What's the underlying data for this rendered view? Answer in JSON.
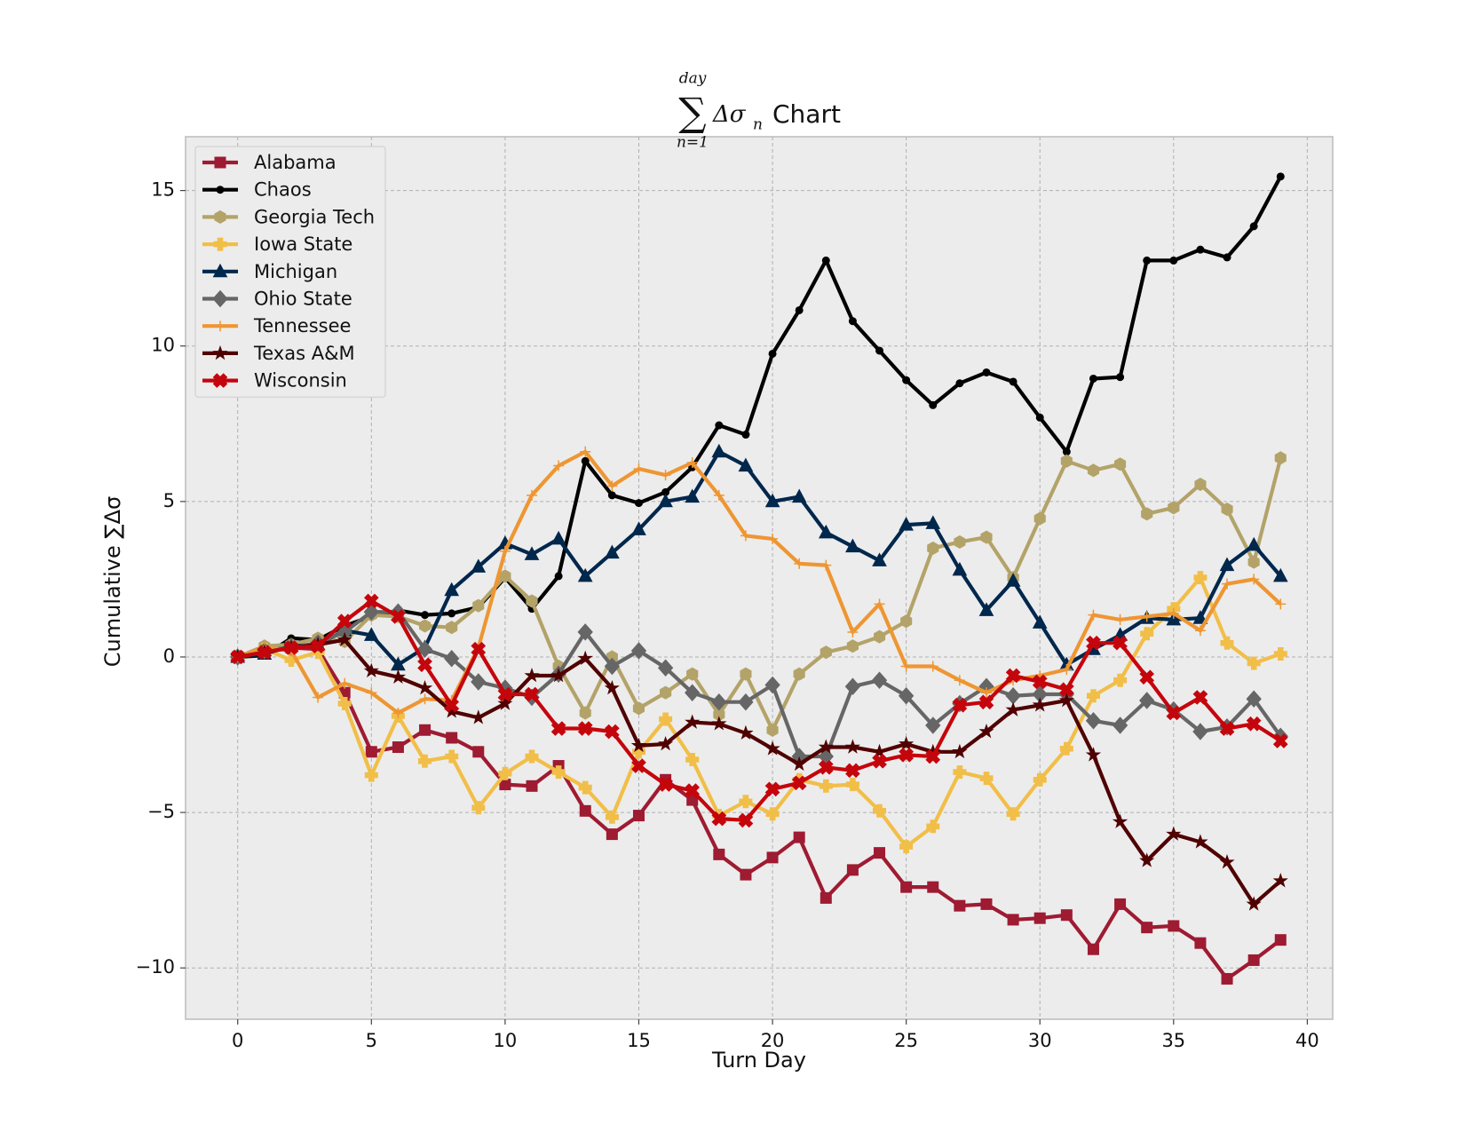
{
  "chart_data": {
    "type": "line",
    "title": {
      "operator": "∑",
      "upper": "day",
      "lower": "n=1",
      "term": "Δσ",
      "term_sub": "n",
      "text": "Chart"
    },
    "xlabel": "Turn Day",
    "ylabel": "Cumulative ∑Δσ",
    "x": [
      0,
      1,
      2,
      3,
      4,
      5,
      6,
      7,
      8,
      9,
      10,
      11,
      12,
      13,
      14,
      15,
      16,
      17,
      18,
      19,
      20,
      21,
      22,
      23,
      24,
      25,
      26,
      27,
      28,
      29,
      30,
      31,
      32,
      33,
      34,
      35,
      36,
      37,
      38,
      39
    ],
    "xlim": [
      -1.95,
      40.95
    ],
    "ylim": [
      -11.65,
      16.73
    ],
    "xticks": [
      0,
      5,
      10,
      15,
      20,
      25,
      30,
      35,
      40
    ],
    "yticks": [
      {
        "value": -10,
        "label": "−10"
      },
      {
        "value": -5,
        "label": "−5"
      },
      0,
      5,
      10,
      15
    ],
    "grid": true,
    "legend": "upper left",
    "series": [
      {
        "name": "Alabama",
        "color": "#9e1b32",
        "marker": "square",
        "values": [
          0,
          0.2,
          0.3,
          0.25,
          -1.15,
          -3.05,
          -2.9,
          -2.35,
          -2.6,
          -3.05,
          -4.1,
          -4.15,
          -3.5,
          -4.95,
          -5.7,
          -5.1,
          -3.95,
          -4.6,
          -6.35,
          -7.0,
          -6.45,
          -5.8,
          -7.75,
          -6.85,
          -6.3,
          -7.4,
          -7.4,
          -8.0,
          -7.95,
          -8.45,
          -8.4,
          -8.3,
          -9.4,
          -7.95,
          -8.7,
          -8.65,
          -9.2,
          -10.35,
          -9.75,
          -9.1
        ]
      },
      {
        "name": "Chaos",
        "color": "#000000",
        "marker": "circle",
        "values": [
          0,
          0.05,
          0.6,
          0.55,
          1.0,
          1.3,
          1.5,
          1.35,
          1.4,
          1.6,
          2.55,
          1.55,
          2.6,
          6.3,
          5.2,
          4.95,
          5.3,
          6.1,
          7.45,
          7.15,
          9.75,
          11.15,
          12.75,
          10.8,
          9.85,
          8.9,
          8.1,
          8.8,
          9.15,
          8.85,
          7.7,
          6.6,
          8.95,
          9.0,
          12.75,
          12.75,
          13.1,
          12.85,
          13.85,
          15.45
        ]
      },
      {
        "name": "Georgia Tech",
        "color": "#b3a369",
        "marker": "hexagon",
        "values": [
          0,
          0.35,
          0.4,
          0.6,
          0.5,
          1.35,
          1.3,
          1.0,
          0.95,
          1.65,
          2.6,
          1.8,
          -0.3,
          -1.8,
          0.0,
          -1.65,
          -1.15,
          -0.55,
          -1.85,
          -0.55,
          -2.35,
          -0.55,
          0.15,
          0.35,
          0.65,
          1.15,
          3.5,
          3.7,
          3.85,
          2.55,
          4.45,
          6.3,
          6.0,
          6.2,
          4.6,
          4.8,
          5.55,
          4.75,
          3.05,
          6.4
        ]
      },
      {
        "name": "Iowa State",
        "color": "#f1be48",
        "marker": "plus-filled",
        "values": [
          0,
          0.25,
          -0.1,
          0.15,
          -1.5,
          -3.8,
          -1.9,
          -3.35,
          -3.2,
          -4.85,
          -3.75,
          -3.2,
          -3.7,
          -4.2,
          -5.15,
          -3.05,
          -2.0,
          -3.3,
          -5.1,
          -4.65,
          -5.05,
          -3.95,
          -4.15,
          -4.1,
          -4.95,
          -6.1,
          -5.45,
          -3.7,
          -3.9,
          -5.05,
          -3.95,
          -2.95,
          -1.25,
          -0.75,
          0.75,
          1.55,
          2.55,
          0.45,
          -0.2,
          0.1
        ]
      },
      {
        "name": "Michigan",
        "color": "#00274c",
        "marker": "triangle",
        "values": [
          0,
          0.1,
          0.35,
          0.4,
          0.85,
          0.7,
          -0.25,
          0.3,
          2.15,
          2.9,
          3.65,
          3.3,
          3.8,
          2.6,
          3.35,
          4.1,
          5.0,
          5.15,
          6.6,
          6.15,
          5.0,
          5.15,
          4.0,
          3.55,
          3.1,
          4.25,
          4.3,
          2.8,
          1.5,
          2.45,
          1.1,
          -0.25,
          0.25,
          0.7,
          1.25,
          1.2,
          1.25,
          2.95,
          3.6,
          2.6
        ]
      },
      {
        "name": "Ohio State",
        "color": "#666666",
        "marker": "diamond",
        "values": [
          0,
          0.2,
          0.3,
          0.45,
          0.8,
          1.45,
          1.45,
          0.25,
          -0.05,
          -0.8,
          -1.0,
          -1.3,
          -0.55,
          0.8,
          -0.3,
          0.2,
          -0.35,
          -1.15,
          -1.45,
          -1.45,
          -0.9,
          -3.2,
          -3.2,
          -0.95,
          -0.75,
          -1.25,
          -2.2,
          -1.5,
          -0.95,
          -1.25,
          -1.2,
          -1.2,
          -2.05,
          -2.2,
          -1.4,
          -1.7,
          -2.4,
          -2.25,
          -1.35,
          -2.55
        ]
      },
      {
        "name": "Tennessee",
        "color": "#ee9632",
        "marker": "thin-plus",
        "values": [
          0,
          0.3,
          0.2,
          -1.3,
          -0.85,
          -1.15,
          -1.8,
          -1.35,
          -1.4,
          0.3,
          3.4,
          5.2,
          6.15,
          6.6,
          5.5,
          6.05,
          5.85,
          6.25,
          5.2,
          3.9,
          3.8,
          3.0,
          2.95,
          0.8,
          1.7,
          -0.3,
          -0.3,
          -0.75,
          -1.15,
          -0.75,
          -0.6,
          -0.4,
          1.35,
          1.2,
          1.3,
          1.4,
          0.85,
          2.35,
          2.5,
          1.7
        ]
      },
      {
        "name": "Texas A&M",
        "color": "#500000",
        "marker": "star",
        "values": [
          0,
          0.15,
          0.3,
          0.4,
          0.55,
          -0.45,
          -0.65,
          -1.0,
          -1.75,
          -1.95,
          -1.5,
          -0.6,
          -0.6,
          -0.05,
          -1.0,
          -2.85,
          -2.8,
          -2.1,
          -2.15,
          -2.45,
          -2.95,
          -3.45,
          -2.9,
          -2.9,
          -3.05,
          -2.8,
          -3.05,
          -3.05,
          -2.4,
          -1.7,
          -1.55,
          -1.4,
          -3.15,
          -5.3,
          -6.55,
          -5.7,
          -5.95,
          -6.6,
          -7.95,
          -7.2
        ]
      },
      {
        "name": "Wisconsin",
        "color": "#c5050c",
        "marker": "x-filled",
        "values": [
          0,
          0.15,
          0.3,
          0.35,
          1.15,
          1.8,
          1.3,
          -0.25,
          -1.55,
          0.25,
          -1.2,
          -1.2,
          -2.3,
          -2.3,
          -2.4,
          -3.5,
          -4.1,
          -4.3,
          -5.2,
          -5.25,
          -4.25,
          -4.05,
          -3.55,
          -3.65,
          -3.35,
          -3.15,
          -3.2,
          -1.55,
          -1.45,
          -0.6,
          -0.8,
          -1.05,
          0.45,
          0.45,
          -0.65,
          -1.8,
          -1.3,
          -2.3,
          -2.15,
          -2.7
        ]
      }
    ]
  }
}
